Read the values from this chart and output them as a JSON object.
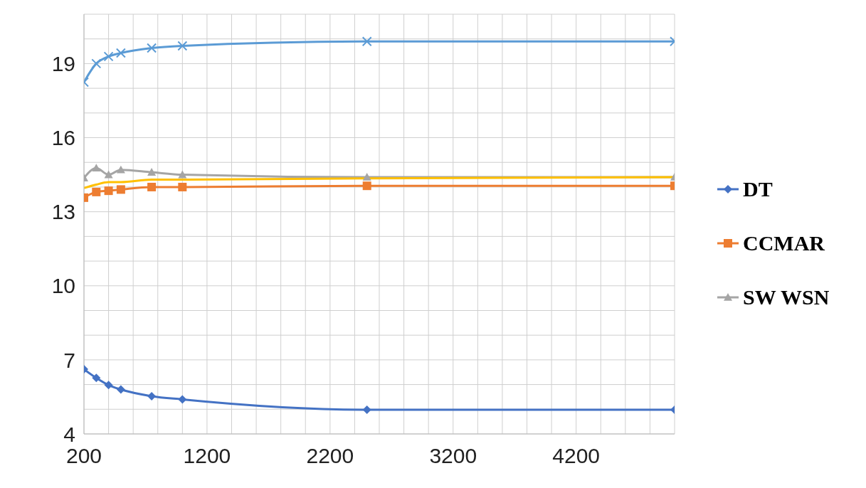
{
  "chart_data": {
    "type": "line",
    "x": [
      200,
      300,
      400,
      500,
      750,
      1000,
      2500,
      5000
    ],
    "series": [
      {
        "name": "DT",
        "color": "#4472c4",
        "marker": "diamond",
        "values": [
          6.62,
          6.27,
          5.98,
          5.8,
          5.53,
          5.4,
          4.98,
          4.98
        ]
      },
      {
        "name": "CCMAR",
        "color": "#ed7d31",
        "marker": "square",
        "values": [
          13.57,
          13.8,
          13.85,
          13.9,
          14.0,
          14.0,
          14.05,
          14.05
        ]
      },
      {
        "name": "SW WSN",
        "color": "#a5a5a5",
        "marker": "triangle",
        "values": [
          14.37,
          14.77,
          14.5,
          14.7,
          14.6,
          14.5,
          14.4,
          14.4
        ]
      },
      {
        "color": "#ffc000",
        "marker": "none",
        "values": [
          13.96,
          14.1,
          14.2,
          14.2,
          14.3,
          14.3,
          14.35,
          14.4
        ]
      },
      {
        "color": "#5b9bd5",
        "marker": "cross",
        "values": [
          18.25,
          19.0,
          19.29,
          19.43,
          19.63,
          19.72,
          19.9,
          19.9
        ]
      }
    ],
    "xlim": [
      200,
      5000
    ],
    "xticks": [
      200,
      {
        "value": 400,
        "label": null
      },
      {
        "value": 600,
        "label": null
      },
      {
        "value": 800,
        "label": null
      },
      {
        "value": 1000,
        "label": null
      },
      1200,
      {
        "value": 1400,
        "label": null
      },
      {
        "value": 1600,
        "label": null
      },
      {
        "value": 1800,
        "label": null
      },
      {
        "value": 2000,
        "label": null
      },
      2200,
      {
        "value": 2400,
        "label": null
      },
      {
        "value": 2600,
        "label": null
      },
      {
        "value": 2800,
        "label": null
      },
      {
        "value": 3000,
        "label": null
      },
      3200,
      {
        "value": 3400,
        "label": null
      },
      {
        "value": 3600,
        "label": null
      },
      {
        "value": 3800,
        "label": null
      },
      {
        "value": 4000,
        "label": null
      },
      4200,
      {
        "value": 4400,
        "label": null
      },
      {
        "value": 4600,
        "label": null
      },
      {
        "value": 4800,
        "label": null
      },
      {
        "value": 5000,
        "label": null
      }
    ],
    "ylim": [
      4,
      21
    ],
    "yticks": [
      4,
      {
        "value": 5,
        "label": null
      },
      {
        "value": 6,
        "label": null
      },
      7,
      {
        "value": 8,
        "label": null
      },
      {
        "value": 9,
        "label": null
      },
      10,
      {
        "value": 11,
        "label": null
      },
      {
        "value": 12,
        "label": null
      },
      13,
      {
        "value": 14,
        "label": null
      },
      {
        "value": 15,
        "label": null
      },
      16,
      {
        "value": 17,
        "label": null
      },
      {
        "value": 18,
        "label": null
      },
      19,
      {
        "value": 20,
        "label": null
      },
      {
        "value": 21,
        "label": null
      }
    ],
    "grid": true,
    "legend": "right"
  }
}
